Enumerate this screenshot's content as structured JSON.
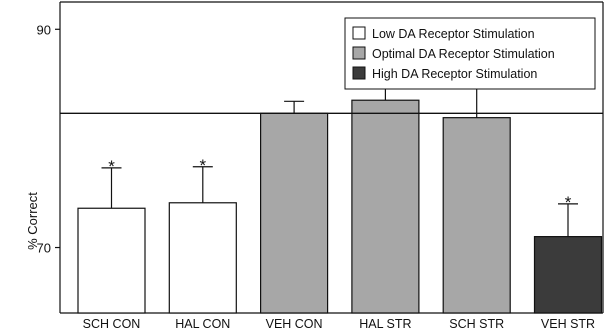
{
  "chart_data": {
    "type": "bar",
    "title": "",
    "xlabel": "",
    "ylabel": "% Correct",
    "ylim": [
      64,
      92.5
    ],
    "yticks": [
      70,
      90
    ],
    "grid": false,
    "legend_position": "top-right",
    "categories": [
      "SCH CON",
      "HAL CON",
      "VEH CON",
      "HAL STR",
      "SCH STR",
      "VEH STR"
    ],
    "values": [
      73.6,
      74.1,
      82.3,
      83.5,
      81.9,
      71.0
    ],
    "errors": [
      3.7,
      3.3,
      1.1,
      1.6,
      3.9,
      3.0
    ],
    "groups": [
      "low",
      "low",
      "optimal",
      "optimal",
      "optimal",
      "high"
    ],
    "markers": [
      "*",
      "*",
      "",
      "†",
      "†",
      "*"
    ],
    "reference_line": 82.3,
    "legend": [
      {
        "key": "low",
        "label": "Low DA Receptor Stimulation",
        "color": "#ffffff"
      },
      {
        "key": "optimal",
        "label": "Optimal DA Receptor Stimulation",
        "color": "#a7a7a7"
      },
      {
        "key": "high",
        "label": "High DA Receptor Stimulation",
        "color": "#3b3b3b"
      }
    ]
  }
}
